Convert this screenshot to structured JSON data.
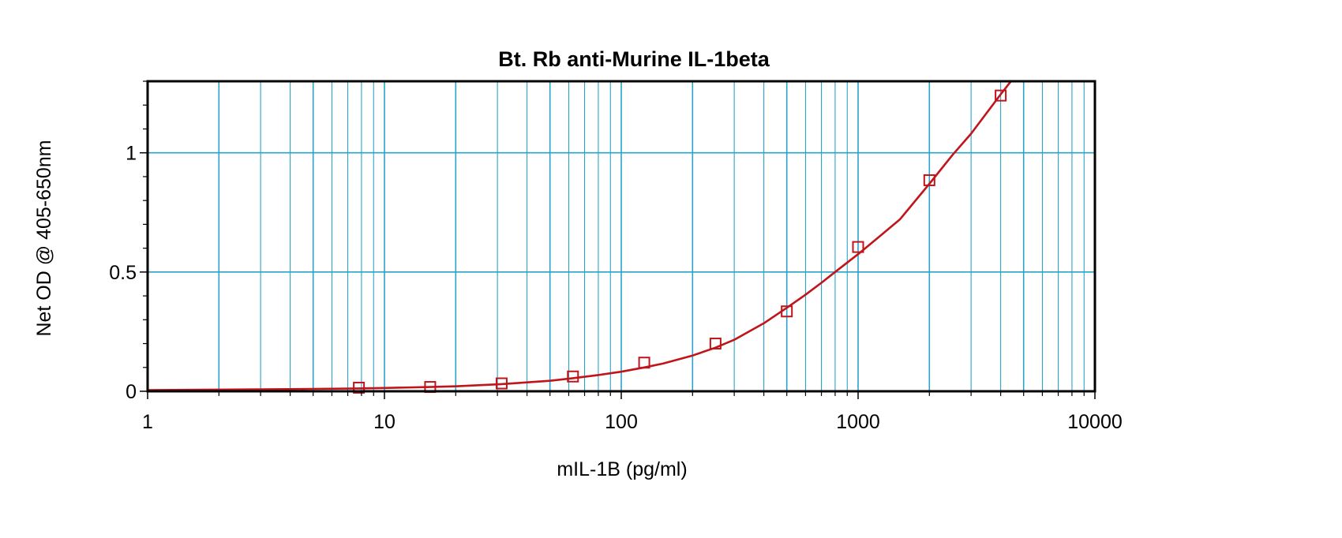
{
  "chart_data": {
    "type": "scatter",
    "title": "Bt. Rb anti-Murine IL-1beta",
    "xlabel": "mIL-1B (pg/ml)",
    "ylabel": "Net OD @ 405-650nm",
    "x_scale": "log",
    "xlim": [
      1,
      10000
    ],
    "ylim": [
      0,
      1.3
    ],
    "x_ticks": [
      1,
      10,
      100,
      1000,
      10000
    ],
    "x_tick_labels": [
      "1",
      "10",
      "100",
      "1000",
      "10000"
    ],
    "y_ticks": [
      0,
      0.5,
      1
    ],
    "y_tick_labels": [
      "0",
      "0.5",
      "1"
    ],
    "grid": true,
    "colors": {
      "grid": "#2aa3c8",
      "series": "#c0151b",
      "frame": "#000000"
    },
    "series": [
      {
        "marker": "open-square",
        "x": [
          7.8,
          15.6,
          31.25,
          62.5,
          125,
          250,
          500,
          1000,
          2000,
          4000
        ],
        "y": [
          0.015,
          0.018,
          0.033,
          0.062,
          0.12,
          0.2,
          0.335,
          0.605,
          0.885,
          1.24
        ]
      }
    ],
    "fit_curve": {
      "style": "line",
      "x": [
        1,
        2,
        3,
        5,
        7.8,
        10,
        15.6,
        20,
        31.25,
        50,
        62.5,
        80,
        100,
        125,
        150,
        200,
        250,
        300,
        400,
        500,
        600,
        700,
        800,
        900,
        1000,
        1200,
        1500,
        2000,
        2500,
        3000,
        4000,
        4500
      ],
      "y": [
        0.005,
        0.007,
        0.008,
        0.01,
        0.012,
        0.014,
        0.018,
        0.021,
        0.03,
        0.044,
        0.055,
        0.068,
        0.082,
        0.1,
        0.116,
        0.15,
        0.183,
        0.216,
        0.285,
        0.35,
        0.405,
        0.455,
        0.5,
        0.54,
        0.575,
        0.64,
        0.72,
        0.87,
        0.99,
        1.08,
        1.245,
        1.31
      ]
    }
  }
}
